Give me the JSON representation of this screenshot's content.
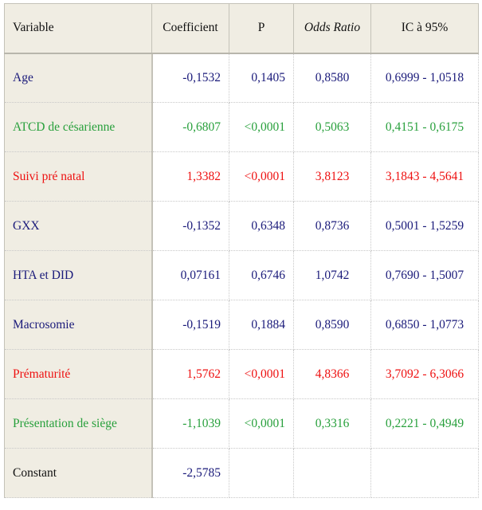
{
  "table": {
    "headers": {
      "variable": "Variable",
      "coefficient": "Coefficient",
      "p": "P",
      "odds_ratio": "Odds Ratio",
      "ci95": "IC à 95%"
    },
    "colors": {
      "blue": "#1a1a7a",
      "green": "#28a03c",
      "red": "#ee1111",
      "black": "#111111",
      "header_bg": "#f0ede3"
    },
    "rows": [
      {
        "variable": "Age",
        "coefficient": "-0,1532",
        "p": "0,1405",
        "odds_ratio": "0,8580",
        "ci95": "0,6999 - 1,0518",
        "color": "blue"
      },
      {
        "variable": "ATCD de césarienne",
        "coefficient": "-0,6807",
        "p": "<0,0001",
        "odds_ratio": "0,5063",
        "ci95": "0,4151 - 0,6175",
        "color": "green"
      },
      {
        "variable": "Suivi pré natal",
        "coefficient": "1,3382",
        "p": "<0,0001",
        "odds_ratio": "3,8123",
        "ci95": "3,1843 - 4,5641",
        "color": "red"
      },
      {
        "variable": "GXX",
        "coefficient": "-0,1352",
        "p": "0,6348",
        "odds_ratio": "0,8736",
        "ci95": "0,5001 - 1,5259",
        "color": "blue"
      },
      {
        "variable": "HTA et DID",
        "coefficient": "0,07161",
        "p": "0,6746",
        "odds_ratio": "1,0742",
        "ci95": "0,7690 - 1,5007",
        "color": "blue"
      },
      {
        "variable": "Macrosomie",
        "coefficient": "-0,1519",
        "p": "0,1884",
        "odds_ratio": "0,8590",
        "ci95": "0,6850 - 1,0773",
        "color": "blue"
      },
      {
        "variable": "Prématurité",
        "coefficient": "1,5762",
        "p": "<0,0001",
        "odds_ratio": "4,8366",
        "ci95": "3,7092 - 6,3066",
        "color": "red"
      },
      {
        "variable": "Présentation de siège",
        "coefficient": "-1,1039",
        "p": "<0,0001",
        "odds_ratio": "0,3316",
        "ci95": "0,2221 - 0,4949",
        "color": "green"
      },
      {
        "variable": "Constant",
        "coefficient": "-2,5785",
        "p": "",
        "odds_ratio": "",
        "ci95": "",
        "color": "black"
      }
    ]
  }
}
